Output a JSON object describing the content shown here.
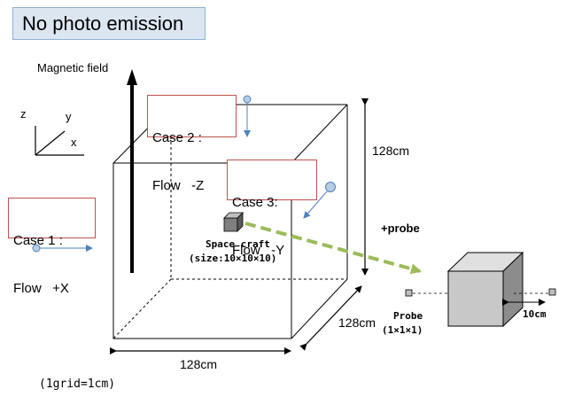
{
  "title": "No photo emission",
  "magnetic_field_label": "Magnetic field",
  "axes": {
    "z": "z",
    "y": "y",
    "x": "x"
  },
  "cases": [
    {
      "line1": "Case 1 :",
      "line2": "Flow   +X"
    },
    {
      "line1": "Case 2 :",
      "line2": "Flow   -Z"
    },
    {
      "line1": "Case 3:",
      "line2": "Flow   -Y"
    }
  ],
  "dimensions": {
    "height": "128cm",
    "depth": "128cm",
    "width": "128cm"
  },
  "spacecraft": {
    "line1": "Space craft",
    "line2": "(size:10×10×10)"
  },
  "probe_add_label": "+probe",
  "probe": {
    "line1": "Probe",
    "line2": "(1×1×1)"
  },
  "probe_distance": "10cm",
  "grid_note": "(1grid=1cm)",
  "colors": {
    "title_bg": "#dce6f1",
    "case_border": "#c0504d",
    "arrow_green": "#9bbb59",
    "flow_blue": "#4f81bd"
  }
}
